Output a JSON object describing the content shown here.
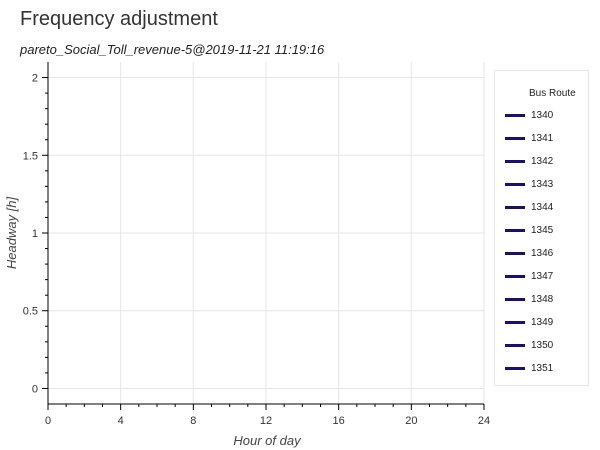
{
  "page_title": "Frequency adjustment",
  "chart_data": {
    "type": "line",
    "title": "pareto_Social_Toll_revenue-5@2019-11-21 11:19:16",
    "xlabel": "Hour of day",
    "ylabel": "Headway [h]",
    "xlim": [
      0,
      24
    ],
    "ylim": [
      -0.1,
      2.1
    ],
    "xticks": [
      0,
      4,
      8,
      12,
      16,
      20,
      24
    ],
    "yticks": [
      0,
      0.5,
      1,
      1.5,
      2
    ],
    "ytick_labels": [
      "0",
      "0.5",
      "1",
      "1.5",
      "2"
    ],
    "grid": true,
    "legend": {
      "title": "Bus Route",
      "placement": "right",
      "entries": [
        "1340",
        "1341",
        "1342",
        "1343",
        "1344",
        "1345",
        "1346",
        "1347",
        "1348",
        "1349",
        "1350",
        "1351"
      ]
    },
    "series": [
      {
        "name": "1340",
        "color": "#1a1072",
        "values": []
      },
      {
        "name": "1341",
        "color": "#1a1072",
        "values": []
      },
      {
        "name": "1342",
        "color": "#1a1072",
        "values": []
      },
      {
        "name": "1343",
        "color": "#1a1072",
        "values": []
      },
      {
        "name": "1344",
        "color": "#1a1072",
        "values": []
      },
      {
        "name": "1345",
        "color": "#1a1072",
        "values": []
      },
      {
        "name": "1346",
        "color": "#1a1072",
        "values": []
      },
      {
        "name": "1347",
        "color": "#1a1072",
        "values": []
      },
      {
        "name": "1348",
        "color": "#1b0e78",
        "values": []
      },
      {
        "name": "1349",
        "color": "#1b0e78",
        "values": []
      },
      {
        "name": "1350",
        "color": "#1a1072",
        "values": []
      },
      {
        "name": "1351",
        "color": "#1a1072",
        "values": []
      }
    ]
  }
}
